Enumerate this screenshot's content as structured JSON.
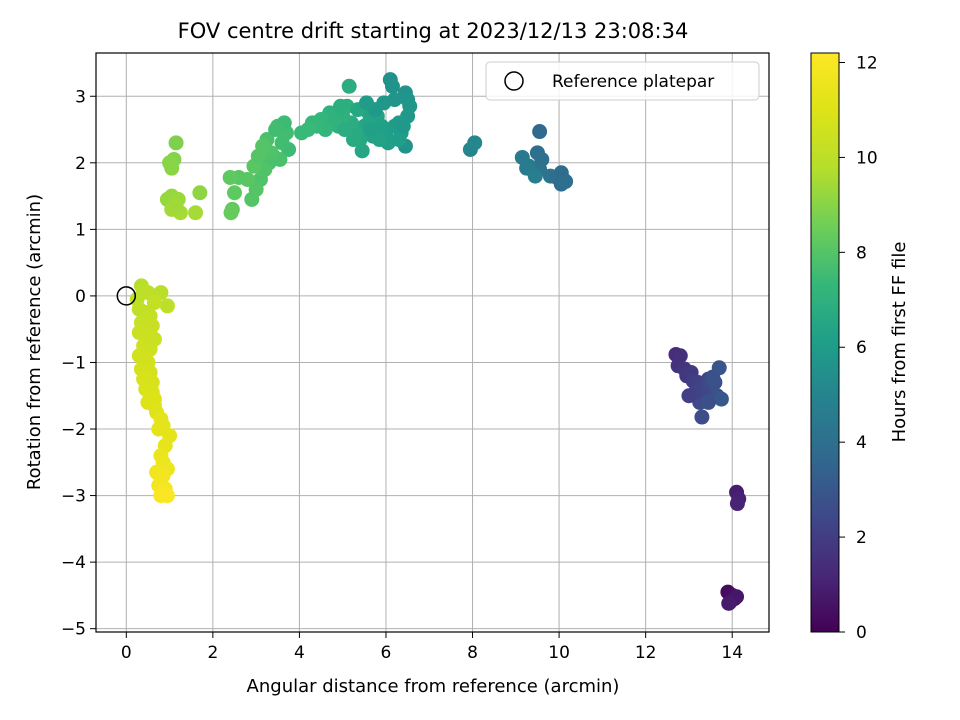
{
  "chart_data": {
    "type": "scatter",
    "title": "FOV centre drift starting at 2023/12/13 23:08:34",
    "xlabel": "Angular distance from reference (arcmin)",
    "ylabel": "Rotation from reference (arcmin)",
    "xlim": [
      -0.7,
      14.85
    ],
    "ylim": [
      -5.05,
      3.65
    ],
    "xticks": [
      0,
      2,
      4,
      6,
      8,
      10,
      12,
      14
    ],
    "yticks": [
      -5,
      -4,
      -3,
      -2,
      -1,
      0,
      1,
      2,
      3
    ],
    "grid": true,
    "legend": {
      "position": "upper-right",
      "entries": [
        "Reference platepar"
      ]
    },
    "reference_point": {
      "x": 0,
      "y": 0
    },
    "colorbar": {
      "label": "Hours from first FF file",
      "range": [
        0,
        12.2
      ],
      "ticks": [
        0,
        2,
        4,
        6,
        8,
        10,
        12
      ],
      "colormap": "viridis"
    },
    "series": [
      {
        "points": [
          [
            13.9,
            -4.45,
            0.3
          ],
          [
            14.0,
            -4.5,
            0.4
          ],
          [
            13.95,
            -4.6,
            0.5
          ],
          [
            14.05,
            -4.55,
            0.6
          ],
          [
            14.1,
            -4.52,
            0.7
          ],
          [
            13.92,
            -4.62,
            0.8
          ],
          [
            14.1,
            -2.95,
            0.9
          ],
          [
            14.15,
            -3.05,
            1.0
          ],
          [
            14.12,
            -3.12,
            1.1
          ],
          [
            12.7,
            -0.88,
            1.4
          ],
          [
            12.8,
            -0.9,
            1.5
          ],
          [
            12.75,
            -1.05,
            1.6
          ],
          [
            12.9,
            -1.1,
            1.7
          ],
          [
            12.95,
            -1.2,
            1.8
          ],
          [
            13.05,
            -1.15,
            1.9
          ],
          [
            13.1,
            -1.28,
            2.0
          ],
          [
            13.2,
            -1.3,
            2.1
          ],
          [
            13.3,
            -1.38,
            2.2
          ],
          [
            13.4,
            -1.4,
            2.3
          ],
          [
            13.45,
            -1.25,
            2.4
          ],
          [
            13.5,
            -1.35,
            2.5
          ],
          [
            13.55,
            -1.45,
            2.6
          ],
          [
            13.6,
            -1.3,
            2.7
          ],
          [
            13.65,
            -1.5,
            2.8
          ],
          [
            13.7,
            -1.08,
            2.9
          ],
          [
            13.75,
            -1.55,
            3.0
          ],
          [
            13.35,
            -1.5,
            2.4
          ],
          [
            13.25,
            -1.6,
            2.5
          ],
          [
            13.3,
            -1.82,
            2.6
          ],
          [
            13.15,
            -1.45,
            2.2
          ],
          [
            13.0,
            -1.5,
            2.1
          ],
          [
            13.45,
            -1.6,
            2.7
          ],
          [
            13.55,
            -1.22,
            2.8
          ],
          [
            9.55,
            2.47,
            3.8
          ],
          [
            9.5,
            2.15,
            4.0
          ],
          [
            9.6,
            2.05,
            4.1
          ],
          [
            9.55,
            1.9,
            4.2
          ],
          [
            9.4,
            1.88,
            4.3
          ],
          [
            9.3,
            1.95,
            4.4
          ],
          [
            9.15,
            2.08,
            4.5
          ],
          [
            9.25,
            1.92,
            4.6
          ],
          [
            9.45,
            1.8,
            4.7
          ],
          [
            9.8,
            1.8,
            4.2
          ],
          [
            9.95,
            1.78,
            4.0
          ],
          [
            10.05,
            1.85,
            3.9
          ],
          [
            10.1,
            1.75,
            3.8
          ],
          [
            10.05,
            1.68,
            3.9
          ],
          [
            10.15,
            1.72,
            4.0
          ],
          [
            7.95,
            2.2,
            5.0
          ],
          [
            8.05,
            2.3,
            5.1
          ],
          [
            6.1,
            3.25,
            5.5
          ],
          [
            6.15,
            3.15,
            5.6
          ],
          [
            6.45,
            3.05,
            5.6
          ],
          [
            6.5,
            2.95,
            5.7
          ],
          [
            6.55,
            2.85,
            5.8
          ],
          [
            6.5,
            2.7,
            5.9
          ],
          [
            6.45,
            2.25,
            5.6
          ],
          [
            6.2,
            2.55,
            6.0
          ],
          [
            6.0,
            2.4,
            6.1
          ],
          [
            5.9,
            2.55,
            6.2
          ],
          [
            5.8,
            2.7,
            6.3
          ],
          [
            5.7,
            2.4,
            6.3
          ],
          [
            5.6,
            2.75,
            6.4
          ],
          [
            5.5,
            2.55,
            6.5
          ],
          [
            5.45,
            2.18,
            6.5
          ],
          [
            5.4,
            2.35,
            6.6
          ],
          [
            5.3,
            2.45,
            6.7
          ],
          [
            5.2,
            2.6,
            6.8
          ],
          [
            5.15,
            3.15,
            6.8
          ],
          [
            5.1,
            2.85,
            6.9
          ],
          [
            5.0,
            2.7,
            7.0
          ],
          [
            4.9,
            2.55,
            7.0
          ],
          [
            4.8,
            2.6,
            7.1
          ],
          [
            4.7,
            2.75,
            7.1
          ],
          [
            4.6,
            2.5,
            7.2
          ],
          [
            4.5,
            2.65,
            7.2
          ],
          [
            4.4,
            2.55,
            7.3
          ],
          [
            4.3,
            2.6,
            7.3
          ],
          [
            4.2,
            2.5,
            7.4
          ],
          [
            4.05,
            2.45,
            7.4
          ],
          [
            6.3,
            2.6,
            6.0
          ],
          [
            6.35,
            2.45,
            6.1
          ],
          [
            6.05,
            2.3,
            6.2
          ],
          [
            5.85,
            2.35,
            6.3
          ],
          [
            5.6,
            2.6,
            6.4
          ],
          [
            5.35,
            2.8,
            6.6
          ],
          [
            5.25,
            2.35,
            6.7
          ],
          [
            5.05,
            2.5,
            6.8
          ],
          [
            4.95,
            2.85,
            6.9
          ],
          [
            6.2,
            2.95,
            5.7
          ],
          [
            5.95,
            2.9,
            5.8
          ],
          [
            5.75,
            2.8,
            5.9
          ],
          [
            5.55,
            2.9,
            6.0
          ],
          [
            6.3,
            2.35,
            6.1
          ],
          [
            6.4,
            2.55,
            5.9
          ],
          [
            5.65,
            2.5,
            6.2
          ],
          [
            3.75,
            2.2,
            7.5
          ],
          [
            3.7,
            2.45,
            7.6
          ],
          [
            3.6,
            2.3,
            7.6
          ],
          [
            3.5,
            2.55,
            7.7
          ],
          [
            3.4,
            2.1,
            7.7
          ],
          [
            3.3,
            2.0,
            7.8
          ],
          [
            3.25,
            2.35,
            7.8
          ],
          [
            3.2,
            1.9,
            7.9
          ],
          [
            3.1,
            1.75,
            7.9
          ],
          [
            3.0,
            1.6,
            8.0
          ],
          [
            2.9,
            1.45,
            8.0
          ],
          [
            2.8,
            1.75,
            8.1
          ],
          [
            2.6,
            1.78,
            8.1
          ],
          [
            2.5,
            1.55,
            8.2
          ],
          [
            2.4,
            1.78,
            8.2
          ],
          [
            2.45,
            1.3,
            8.3
          ],
          [
            2.42,
            1.25,
            8.4
          ],
          [
            3.55,
            2.05,
            7.8
          ],
          [
            3.65,
            2.6,
            7.5
          ],
          [
            3.45,
            2.5,
            7.6
          ],
          [
            3.35,
            2.15,
            7.9
          ],
          [
            3.15,
            2.25,
            8.0
          ],
          [
            2.95,
            1.95,
            8.1
          ],
          [
            3.05,
            2.1,
            8.0
          ],
          [
            1.15,
            2.3,
            8.8
          ],
          [
            1.1,
            2.05,
            8.9
          ],
          [
            1.0,
            2.0,
            9.0
          ],
          [
            1.05,
            1.92,
            9.0
          ],
          [
            1.7,
            1.55,
            9.1
          ],
          [
            0.95,
            1.45,
            9.2
          ],
          [
            1.05,
            1.5,
            9.2
          ],
          [
            1.1,
            1.4,
            9.3
          ],
          [
            1.2,
            1.45,
            9.3
          ],
          [
            1.05,
            1.3,
            9.4
          ],
          [
            1.25,
            1.25,
            9.5
          ],
          [
            1.6,
            1.25,
            9.5
          ],
          [
            1.15,
            1.35,
            9.4
          ],
          [
            0.35,
            0.15,
            9.8
          ],
          [
            0.4,
            0.08,
            9.9
          ],
          [
            0.5,
            0.05,
            10.0
          ],
          [
            0.8,
            0.05,
            9.9
          ],
          [
            0.95,
            -0.15,
            10.0
          ],
          [
            0.25,
            -0.05,
            10.0
          ],
          [
            0.3,
            -0.2,
            10.1
          ],
          [
            0.45,
            -0.25,
            10.1
          ],
          [
            0.65,
            -0.1,
            10.2
          ],
          [
            0.55,
            -0.3,
            10.2
          ],
          [
            0.35,
            -0.4,
            10.3
          ],
          [
            0.6,
            -0.45,
            10.3
          ],
          [
            0.3,
            -0.55,
            10.4
          ],
          [
            0.5,
            -0.6,
            10.4
          ],
          [
            0.4,
            -0.75,
            10.5
          ],
          [
            0.55,
            -0.8,
            10.5
          ],
          [
            0.3,
            -0.9,
            10.6
          ],
          [
            0.5,
            -1.0,
            10.6
          ],
          [
            0.35,
            -1.1,
            10.7
          ],
          [
            0.55,
            -1.15,
            10.7
          ],
          [
            0.4,
            -1.25,
            10.8
          ],
          [
            0.6,
            -1.3,
            10.8
          ],
          [
            0.45,
            -1.4,
            10.9
          ],
          [
            0.55,
            -1.5,
            11.0
          ],
          [
            0.5,
            -1.6,
            11.0
          ],
          [
            0.65,
            -1.65,
            11.1
          ],
          [
            0.7,
            -1.75,
            11.1
          ],
          [
            0.8,
            -1.85,
            11.2
          ],
          [
            0.85,
            -1.95,
            11.2
          ],
          [
            0.75,
            -2.0,
            11.3
          ],
          [
            1.0,
            -2.1,
            11.3
          ],
          [
            0.9,
            -2.25,
            11.4
          ],
          [
            0.8,
            -2.4,
            11.5
          ],
          [
            0.85,
            -2.5,
            11.5
          ],
          [
            0.95,
            -2.6,
            11.6
          ],
          [
            0.7,
            -2.65,
            11.7
          ],
          [
            0.8,
            -2.75,
            11.7
          ],
          [
            0.75,
            -2.85,
            11.8
          ],
          [
            0.9,
            -2.9,
            11.9
          ],
          [
            0.8,
            -3.0,
            12.0
          ],
          [
            0.95,
            -3.0,
            12.1
          ],
          [
            0.65,
            -0.65,
            10.4
          ],
          [
            0.45,
            -0.95,
            10.6
          ],
          [
            0.6,
            -1.45,
            10.9
          ],
          [
            0.65,
            -1.55,
            11.0
          ],
          [
            0.85,
            -2.7,
            11.8
          ]
        ]
      }
    ]
  }
}
